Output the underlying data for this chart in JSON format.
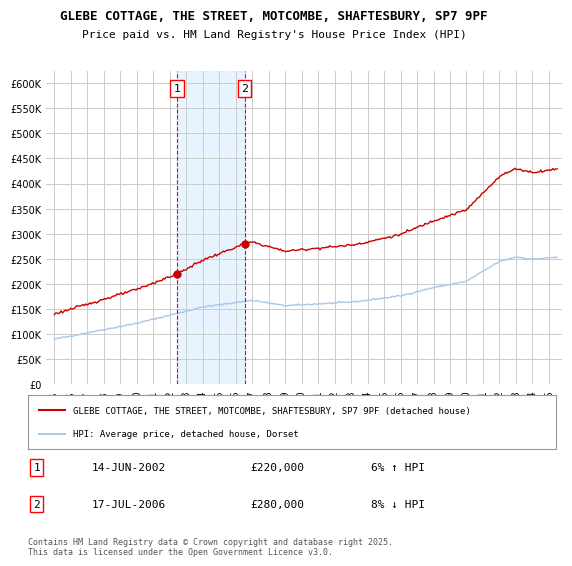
{
  "title1": "GLEBE COTTAGE, THE STREET, MOTCOMBE, SHAFTESBURY, SP7 9PF",
  "title2": "Price paid vs. HM Land Registry's House Price Index (HPI)",
  "legend_line1": "GLEBE COTTAGE, THE STREET, MOTCOMBE, SHAFTESBURY, SP7 9PF (detached house)",
  "legend_line2": "HPI: Average price, detached house, Dorset",
  "sale1_label": "1",
  "sale1_date": "14-JUN-2002",
  "sale1_price": "£220,000",
  "sale1_hpi": "6% ↑ HPI",
  "sale2_label": "2",
  "sale2_date": "17-JUL-2006",
  "sale2_price": "£280,000",
  "sale2_hpi": "8% ↓ HPI",
  "footer": "Contains HM Land Registry data © Crown copyright and database right 2025.\nThis data is licensed under the Open Government Licence v3.0.",
  "sale1_year": 2002.45,
  "sale1_value": 220000,
  "sale2_year": 2006.54,
  "sale2_value": 280000,
  "property_color": "#cc0000",
  "hpi_color": "#aac8e8",
  "ylim": [
    0,
    625000
  ],
  "yticks": [
    0,
    50000,
    100000,
    150000,
    200000,
    250000,
    300000,
    350000,
    400000,
    450000,
    500000,
    550000,
    600000
  ],
  "background_color": "#ffffff",
  "grid_color": "#cccccc",
  "shade_color": "#ddeeff"
}
